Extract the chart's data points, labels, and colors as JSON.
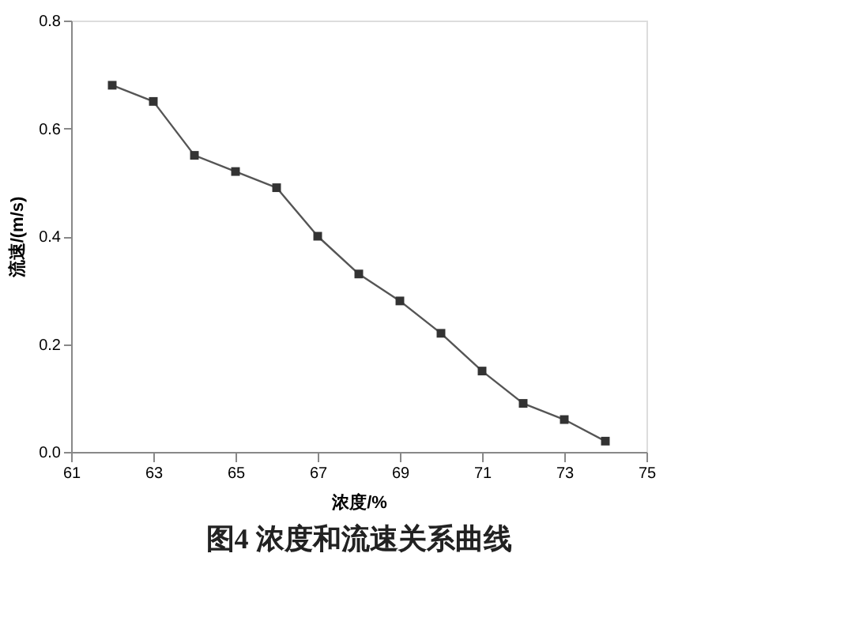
{
  "chart_data": {
    "type": "line",
    "title": "图4  浓度和流速关系曲线",
    "xlabel": "浓度/%",
    "ylabel": "流速/(m/s)",
    "x": [
      62,
      63,
      64,
      65,
      66,
      67,
      68,
      69,
      70,
      71,
      72,
      73,
      74
    ],
    "series": [
      {
        "color": "#555555",
        "values": [
          0.68,
          0.65,
          0.55,
          0.52,
          0.49,
          0.4,
          0.33,
          0.28,
          0.22,
          0.15,
          0.09,
          0.06,
          0.02
        ]
      }
    ],
    "xlim": [
      61,
      75
    ],
    "xticks": [
      61,
      63,
      65,
      67,
      69,
      71,
      73,
      75
    ],
    "ylim": [
      0,
      0.8
    ],
    "yticks": [
      {
        "value": 0,
        "label": "0.0"
      },
      {
        "value": 0.2,
        "label": "0.2"
      },
      {
        "value": 0.4,
        "label": "0.4"
      },
      {
        "value": 0.6,
        "label": "0.6"
      },
      {
        "value": 0.8,
        "label": "0.8"
      }
    ],
    "grid": false,
    "legend": false,
    "marker": "square",
    "line_style": "solid"
  }
}
